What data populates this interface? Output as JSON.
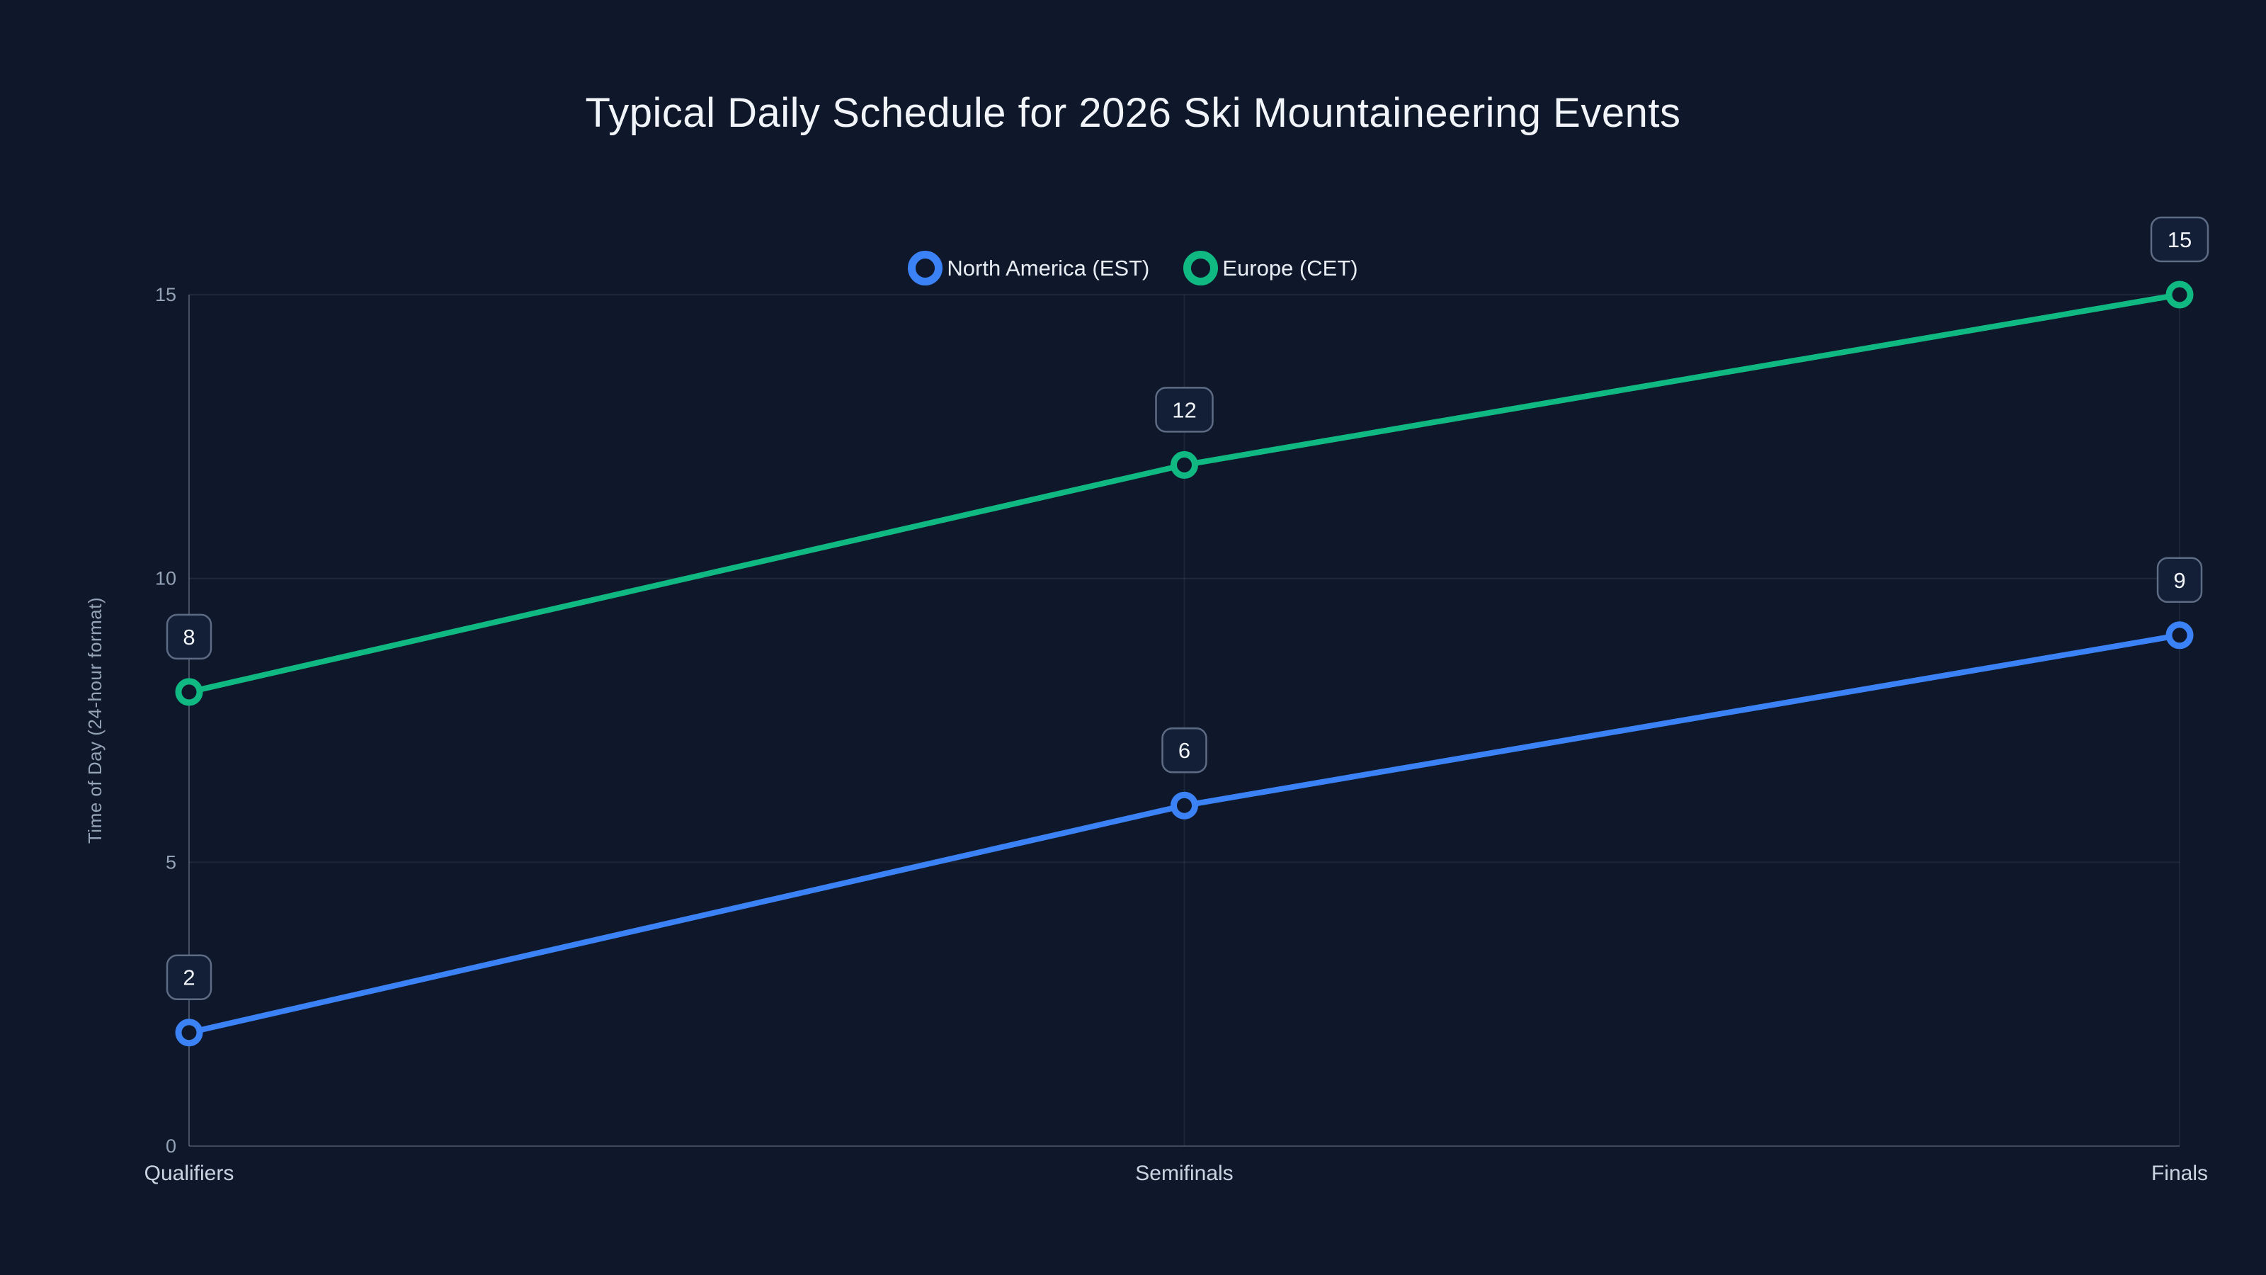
{
  "title": "Typical Daily Schedule for 2026 Ski Mountaineering Events",
  "chart_data": {
    "type": "line",
    "categories": [
      "Qualifiers",
      "Semifinals",
      "Finals"
    ],
    "series": [
      {
        "name": "North America (EST)",
        "color": "#3b82f6",
        "values": [
          2,
          6,
          9
        ]
      },
      {
        "name": "Europe (CET)",
        "color": "#10b981",
        "values": [
          8,
          12,
          15
        ]
      }
    ],
    "point_labels": [
      {
        "series": "North America (EST)",
        "labels": [
          "2",
          "6",
          "9"
        ]
      },
      {
        "series": "Europe (CET)",
        "labels": [
          "8",
          "12",
          "15"
        ]
      }
    ],
    "xlabel": "",
    "ylabel": "Time of Day (24-hour format)",
    "ylim": [
      0,
      15
    ],
    "yticks": [
      0,
      5,
      10,
      15
    ],
    "grid": true,
    "legend_position": "top-center"
  },
  "colors": {
    "background": "#0f172a",
    "title_text": "#f1f5f9",
    "axis_text": "#94a3b8",
    "category_text": "#cbd5e1",
    "grid_line": "rgba(148,163,184,0.12)",
    "axis_line": "rgba(148,163,184,0.35)",
    "label_box_fill": "#131f36",
    "label_box_border": "#5d6c84",
    "label_box_text": "#f1f5f9",
    "series_blue": "#3b82f6",
    "series_green": "#10b981"
  }
}
